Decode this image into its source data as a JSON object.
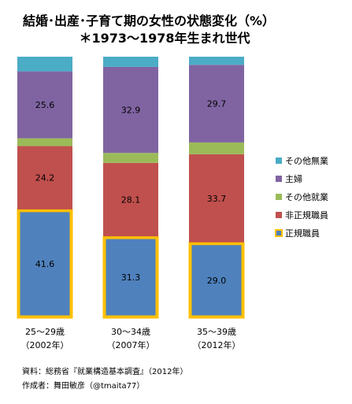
{
  "chart_data": {
    "type": "bar",
    "stacked": true,
    "percent_stacked": true,
    "title": "結婚･出産･子育て期の女性の状態変化（%）",
    "subtitle": "＊1973～1978年生まれ世代",
    "categories": [
      {
        "line1": "25～29歳",
        "line2": "（2002年）"
      },
      {
        "line1": "30～34歳",
        "line2": "（2007年）"
      },
      {
        "line1": "35～39歳",
        "line2": "（2012年）"
      }
    ],
    "series": [
      {
        "name": "正規職員",
        "color": "#4f81bd",
        "highlight": "#ffc000",
        "values": [
          41.6,
          31.3,
          29.0
        ],
        "show_labels": true
      },
      {
        "name": "非正規職員",
        "color": "#c0504d",
        "values": [
          24.2,
          28.1,
          33.7
        ],
        "show_labels": true
      },
      {
        "name": "その他就業",
        "color": "#9bbb59",
        "values": [
          3.0,
          3.8,
          4.5
        ],
        "show_labels": false
      },
      {
        "name": "主婦",
        "color": "#8064a2",
        "values": [
          25.6,
          32.9,
          29.7
        ],
        "show_labels": true
      },
      {
        "name": "その他無業",
        "color": "#4bacc6",
        "values": [
          5.6,
          3.9,
          3.1
        ],
        "show_labels": false
      }
    ],
    "legend_order": [
      "その他無業",
      "主婦",
      "その他就業",
      "非正規職員",
      "正規職員"
    ],
    "legend_position": "right",
    "grid": false,
    "ylim": [
      0,
      100
    ]
  },
  "source": {
    "line1": "資料：総務省『就業構造基本調査』（2012年）",
    "line2": "作成者：舞田敏彦（@tmaita77）"
  }
}
